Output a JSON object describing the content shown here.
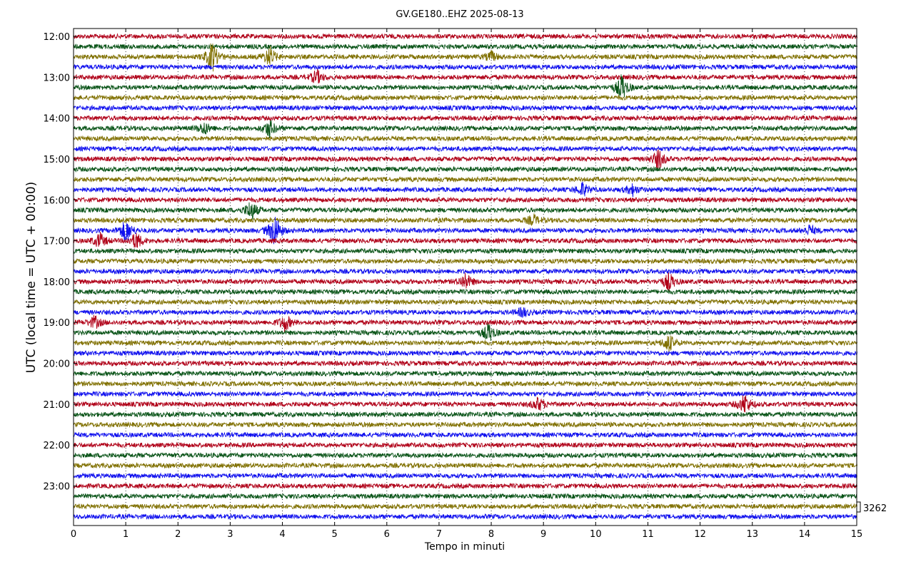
{
  "chart_data": {
    "type": "line",
    "title": "GV.GE180..EHZ 2025-08-13",
    "xlabel": "Tempo in minuti",
    "ylabel": "UTC (local time = UTC + 00:00)",
    "xlim": [
      0,
      15
    ],
    "x_ticks": [
      "0",
      "1",
      "2",
      "3",
      "4",
      "5",
      "6",
      "7",
      "8",
      "9",
      "10",
      "11",
      "12",
      "13",
      "14",
      "15"
    ],
    "y_ticks": [
      "12:00",
      "13:00",
      "14:00",
      "15:00",
      "16:00",
      "17:00",
      "18:00",
      "19:00",
      "20:00",
      "21:00",
      "22:00",
      "23:00"
    ],
    "trace_count": 48,
    "trace_colors": [
      "#b00018",
      "#0a5418",
      "#807000",
      "#1010ee"
    ],
    "scale_label": "3262",
    "grid": "vertical-dotted",
    "events": [
      {
        "trace": 2,
        "minute": 2.65,
        "amplitude": 2.2
      },
      {
        "trace": 2,
        "minute": 3.75,
        "amplitude": 1.4
      },
      {
        "trace": 2,
        "minute": 8.0,
        "amplitude": 0.7
      },
      {
        "trace": 4,
        "minute": 4.65,
        "amplitude": 1.0
      },
      {
        "trace": 5,
        "minute": 10.5,
        "amplitude": 1.8
      },
      {
        "trace": 9,
        "minute": 3.75,
        "amplitude": 1.3
      },
      {
        "trace": 9,
        "minute": 2.5,
        "amplitude": 0.9
      },
      {
        "trace": 12,
        "minute": 11.2,
        "amplitude": 1.4
      },
      {
        "trace": 15,
        "minute": 9.75,
        "amplitude": 1.0
      },
      {
        "trace": 15,
        "minute": 10.7,
        "amplitude": 0.8
      },
      {
        "trace": 17,
        "minute": 3.4,
        "amplitude": 1.5
      },
      {
        "trace": 18,
        "minute": 8.8,
        "amplitude": 0.8
      },
      {
        "trace": 19,
        "minute": 1.0,
        "amplitude": 1.8
      },
      {
        "trace": 19,
        "minute": 3.85,
        "amplitude": 2.5
      },
      {
        "trace": 19,
        "minute": 14.1,
        "amplitude": 0.7
      },
      {
        "trace": 20,
        "minute": 0.5,
        "amplitude": 1.1
      },
      {
        "trace": 20,
        "minute": 1.2,
        "amplitude": 1.2
      },
      {
        "trace": 24,
        "minute": 7.5,
        "amplitude": 1.2
      },
      {
        "trace": 24,
        "minute": 11.4,
        "amplitude": 1.3
      },
      {
        "trace": 27,
        "minute": 8.6,
        "amplitude": 0.7
      },
      {
        "trace": 28,
        "minute": 0.4,
        "amplitude": 0.9
      },
      {
        "trace": 28,
        "minute": 4.05,
        "amplitude": 1.2
      },
      {
        "trace": 29,
        "minute": 7.95,
        "amplitude": 1.3
      },
      {
        "trace": 30,
        "minute": 11.4,
        "amplitude": 1.3
      },
      {
        "trace": 36,
        "minute": 8.9,
        "amplitude": 1.0
      },
      {
        "trace": 36,
        "minute": 12.85,
        "amplitude": 1.5
      }
    ]
  }
}
